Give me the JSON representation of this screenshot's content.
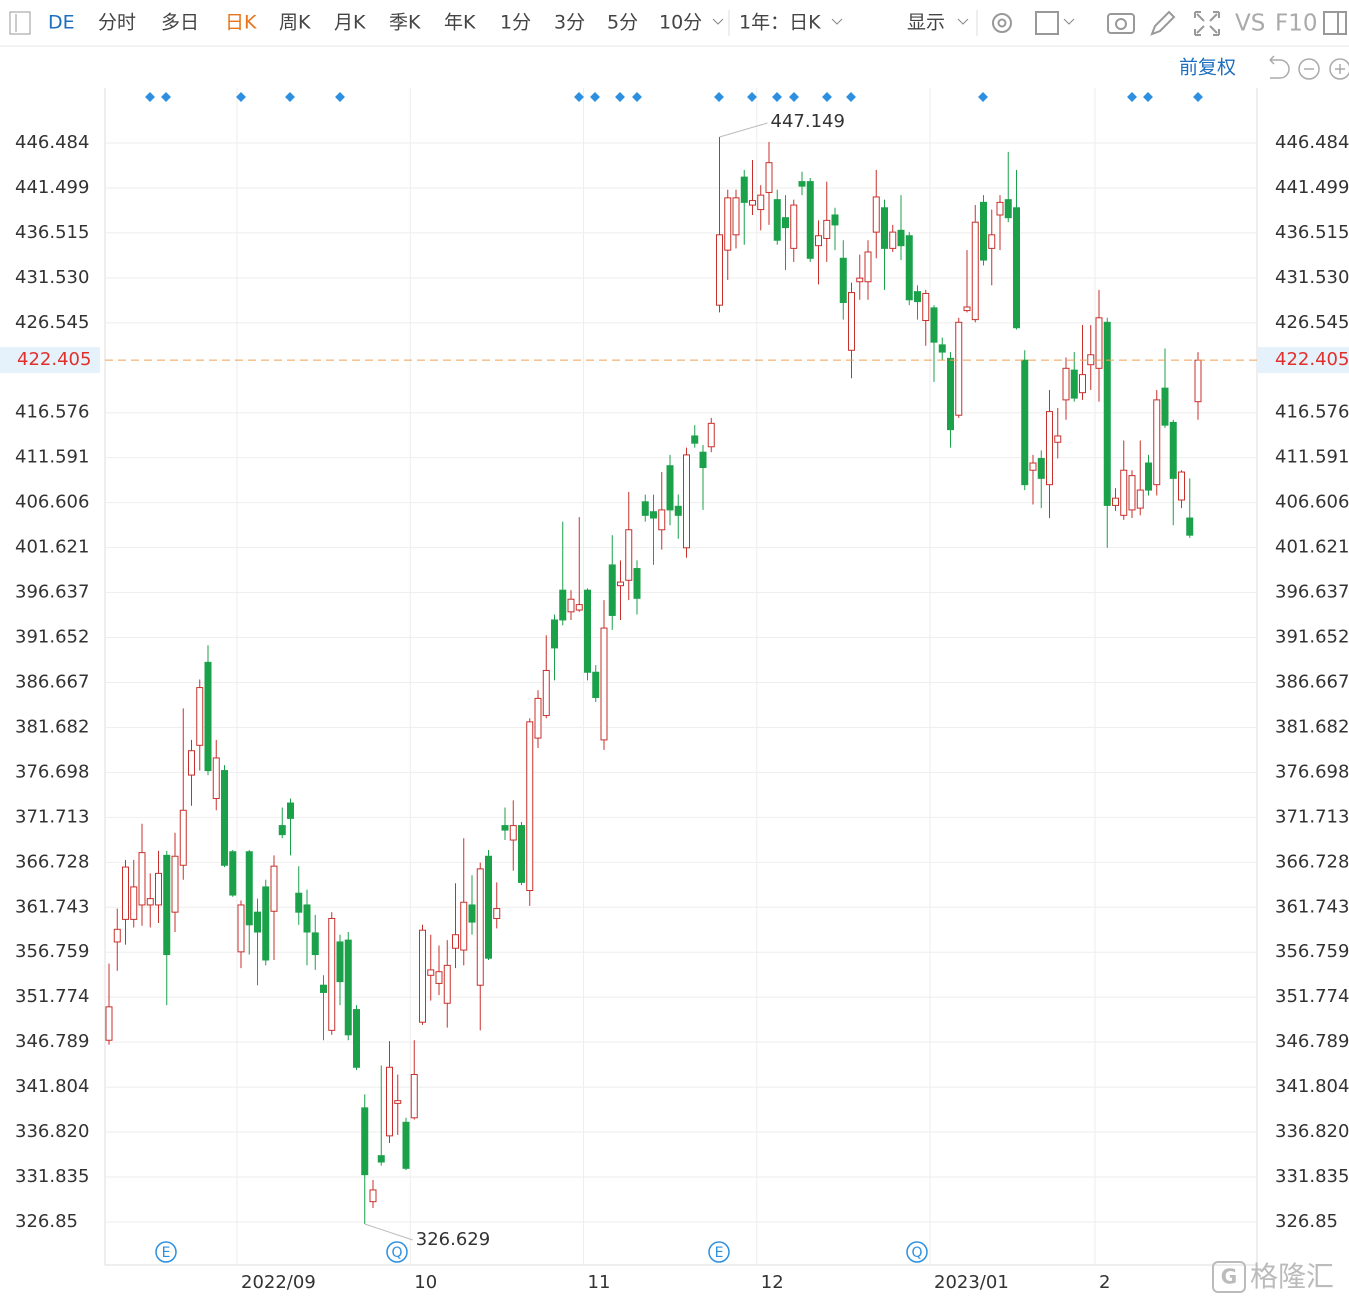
{
  "toolbar": {
    "symbol": "DE",
    "items": [
      "分时",
      "多日",
      "日K",
      "周K",
      "月K",
      "季K",
      "年K",
      "1分",
      "3分",
      "5分",
      "10分"
    ],
    "range": "1年：日K",
    "display": "显示",
    "vs": "VS",
    "f10": "F10",
    "adjust": "前复权"
  },
  "watermark": "格隆汇",
  "chart_data": {
    "type": "candlestick",
    "categories": [
      null,
      null,
      null,
      null,
      null,
      null,
      null,
      null,
      null,
      null,
      null,
      null,
      null,
      null,
      null,
      null,
      "2022/09",
      null,
      null,
      null,
      null,
      null,
      null,
      null,
      null,
      null,
      null,
      null,
      null,
      null,
      null,
      null,
      null,
      null,
      null,
      null,
      null,
      "10",
      null,
      null,
      null,
      null,
      null,
      null,
      null,
      null,
      null,
      null,
      null,
      null,
      null,
      null,
      null,
      null,
      null,
      null,
      null,
      null,
      "11",
      null,
      null,
      null,
      null,
      null,
      null,
      null,
      null,
      null,
      null,
      null,
      null,
      null,
      null,
      null,
      null,
      null,
      null,
      null,
      null,
      "12",
      null,
      null,
      null,
      null,
      null,
      null,
      null,
      null,
      null,
      null,
      null,
      null,
      null,
      null,
      null,
      null,
      null,
      null,
      null,
      null,
      "2023/01",
      null,
      null,
      null,
      null,
      null,
      null,
      null,
      null,
      null,
      null,
      null,
      null,
      null,
      null,
      null,
      null,
      null,
      null,
      null,
      "2",
      null,
      null,
      null,
      null,
      null,
      null,
      null,
      null,
      null,
      null,
      null,
      null
    ],
    "open": [
      347,
      357.9,
      360.4,
      360.4,
      362,
      362,
      362,
      367.5,
      361.2,
      366.4,
      376.4,
      379.7,
      388.9,
      373.8,
      376.9,
      367.9,
      356.8,
      367.9,
      361.2,
      364,
      361.3,
      370.8,
      373.3,
      363.3,
      362,
      358.9,
      353.1,
      348.1,
      357.9,
      358.1,
      350.4,
      339.5,
      329.1,
      334.2,
      336.4,
      340,
      337.9,
      338.4,
      349,
      354.2,
      353.3,
      351.1,
      357.2,
      357,
      362,
      353.1,
      367.4,
      360.5,
      370.8,
      369.2,
      370.8,
      363.6,
      380.5,
      383,
      393.6,
      396.9,
      394.5,
      394.7,
      396.9,
      387.8,
      380.3,
      399.7,
      397.4,
      398,
      399.3,
      406.7,
      405.6,
      403.6,
      410.7,
      406.2,
      401.6,
      414,
      412.2,
      412.8,
      428.5,
      434.6,
      436.3,
      442.7,
      439.6,
      439.1,
      441,
      440.2,
      438.2,
      434.8,
      442.2,
      442.2,
      435.1,
      435.9,
      438.5,
      433.7,
      423.5,
      431.1,
      431.1,
      436.6,
      439.3,
      434.8,
      436.8,
      436.2,
      430,
      426.8,
      428.2,
      424.1,
      422.6,
      416.3,
      427.9,
      426.9,
      439.9,
      434.8,
      438.5,
      440.2,
      439.3,
      422.4,
      410.2,
      411.5,
      408.6,
      413.3,
      418,
      421.3,
      418.8,
      421.9,
      421.5,
      426.6,
      406.3,
      405.2,
      405.8,
      406,
      411,
      408.6,
      419.3,
      415.5,
      406.9,
      404.9,
      417.8
    ],
    "high": [
      355.5,
      361.6,
      367,
      367,
      371,
      365.5,
      368,
      368,
      370,
      383.8,
      380.3,
      387,
      390.8,
      380.3,
      377.5,
      368.1,
      362.5,
      368.1,
      362.7,
      364.8,
      367.5,
      372.8,
      373.8,
      366.3,
      363.7,
      360.9,
      354.2,
      361.2,
      358.7,
      359,
      350.9,
      341,
      331.5,
      344.2,
      346.9,
      343.2,
      338.4,
      347,
      359.8,
      358.7,
      357.5,
      358.1,
      364.4,
      369.4,
      365.3,
      366.7,
      368.1,
      364.5,
      372.8,
      373.6,
      371.2,
      382.7,
      385.8,
      391.9,
      394.2,
      404.5,
      396.9,
      405,
      397.1,
      388.6,
      395.8,
      403,
      400.2,
      407.8,
      400.2,
      407.5,
      407.5,
      410,
      411.9,
      407.5,
      412.7,
      415.2,
      413,
      416,
      447.149,
      441.3,
      441.3,
      443.5,
      444.6,
      441.8,
      446.6,
      441.3,
      440.7,
      440.2,
      443.3,
      442.6,
      437.9,
      442.2,
      439.3,
      435.7,
      431,
      434.1,
      435.7,
      443.5,
      440.2,
      437.4,
      440.7,
      436.6,
      430.7,
      430.2,
      428.5,
      424.9,
      423.3,
      427.1,
      434.6,
      439.6,
      440.7,
      439.1,
      440.7,
      445.5,
      443.5,
      423.5,
      411.9,
      412.4,
      419.1,
      417.1,
      422.7,
      423.3,
      426.3,
      426.3,
      430.2,
      427.1,
      408.2,
      413.5,
      410.2,
      413.5,
      411.9,
      419.1,
      423.7,
      415.8,
      410.2,
      409.3,
      423.3
    ],
    "low": [
      346.5,
      354.7,
      357.6,
      359.5,
      359.7,
      359.5,
      360,
      350.9,
      359,
      364.8,
      373,
      376.9,
      376.4,
      372.5,
      366.2,
      362.9,
      355,
      356.5,
      353.1,
      355.3,
      355.9,
      369.4,
      367.5,
      359.8,
      355.3,
      354.8,
      347,
      347.6,
      350.9,
      347,
      343.7,
      326.629,
      328.4,
      333.1,
      335.6,
      336.5,
      332.6,
      338.2,
      348.7,
      351.4,
      352,
      348.4,
      355,
      355.3,
      358.7,
      348.1,
      355.9,
      359.4,
      369.2,
      365.8,
      364.2,
      361.9,
      379.4,
      382.7,
      386.9,
      393,
      393.6,
      394.5,
      386.9,
      384.5,
      379.2,
      392.5,
      393.6,
      395.8,
      394.2,
      404.5,
      399.7,
      401.4,
      404.1,
      402.6,
      400.5,
      412.7,
      405.8,
      412.2,
      427.7,
      431.3,
      434.8,
      435.2,
      438.5,
      436.8,
      437.4,
      435.2,
      432.4,
      433.3,
      440.7,
      433.3,
      430.8,
      433.3,
      434.6,
      426.9,
      420.4,
      429.1,
      429.1,
      433.7,
      430.2,
      434.4,
      433.5,
      428.5,
      426.9,
      424,
      420,
      422.4,
      412.7,
      416,
      427.7,
      426.6,
      432.9,
      430.7,
      434.6,
      437.7,
      425.8,
      408,
      406.4,
      406,
      404.9,
      411.5,
      415.8,
      417.8,
      418,
      419.1,
      417.8,
      401.6,
      405.7,
      404.7,
      404.9,
      405.2,
      407.4,
      407.4,
      414.9,
      404.1,
      406,
      402.7,
      415.8
    ],
    "close": [
      350.7,
      359.3,
      366.2,
      364,
      367.8,
      362.7,
      365.5,
      356.5,
      367.4,
      372.5,
      379.1,
      386.1,
      376.9,
      378.3,
      366.4,
      363.1,
      362,
      359.8,
      359,
      355.9,
      366.3,
      369.8,
      371.6,
      361.2,
      359,
      356.5,
      352.3,
      360.5,
      353.5,
      347.6,
      344,
      332.1,
      330.4,
      333.5,
      344,
      340.3,
      332.8,
      343.2,
      359.2,
      354.8,
      354.6,
      355.3,
      358.7,
      362.3,
      360.1,
      366,
      356.1,
      361.6,
      370.3,
      370.8,
      364.5,
      382.3,
      384.9,
      388,
      390.5,
      393.6,
      395.9,
      395.3,
      387.8,
      385,
      392.7,
      394.1,
      397.8,
      403.6,
      396,
      405.2,
      404.9,
      405.8,
      405.8,
      405.2,
      411.9,
      413.2,
      410.5,
      415.4,
      436.3,
      440.4,
      440.4,
      439.9,
      440.1,
      440.7,
      444.3,
      435.7,
      437.1,
      439.6,
      441.7,
      433.7,
      436.2,
      437.9,
      437.4,
      428.8,
      429.9,
      431.5,
      434.4,
      440.5,
      434.8,
      436.6,
      435.1,
      429.1,
      428.9,
      429.8,
      424.4,
      423.3,
      414.7,
      426.6,
      428.3,
      437.7,
      433.5,
      436.3,
      439.9,
      438.2,
      426,
      408.6,
      411,
      409.3,
      416.7,
      414,
      421.5,
      418.2,
      420.8,
      423,
      427.1,
      406.3,
      407.1,
      410.2,
      409.6,
      408,
      408,
      418,
      415.2,
      409.3,
      410,
      403,
      422.4
    ],
    "up_color": "#c9302c",
    "down_color": "#1aa14a",
    "ylim": [
      322.08,
      452.58
    ],
    "yticks": [
      446.484,
      441.499,
      436.515,
      {
        "value": 431.53,
        "label": "431.530"
      },
      426.545,
      416.576,
      411.591,
      406.606,
      401.621,
      396.637,
      391.652,
      386.667,
      381.682,
      376.698,
      371.713,
      366.728,
      361.743,
      356.759,
      351.774,
      346.789,
      341.804,
      {
        "value": 336.82,
        "label": "336.820"
      },
      331.835,
      326.85
    ],
    "grid": true,
    "last_price": 422.405,
    "max_label": 447.149,
    "min_label": 326.629,
    "events": [
      "E",
      "Q",
      "E",
      "Q"
    ]
  }
}
